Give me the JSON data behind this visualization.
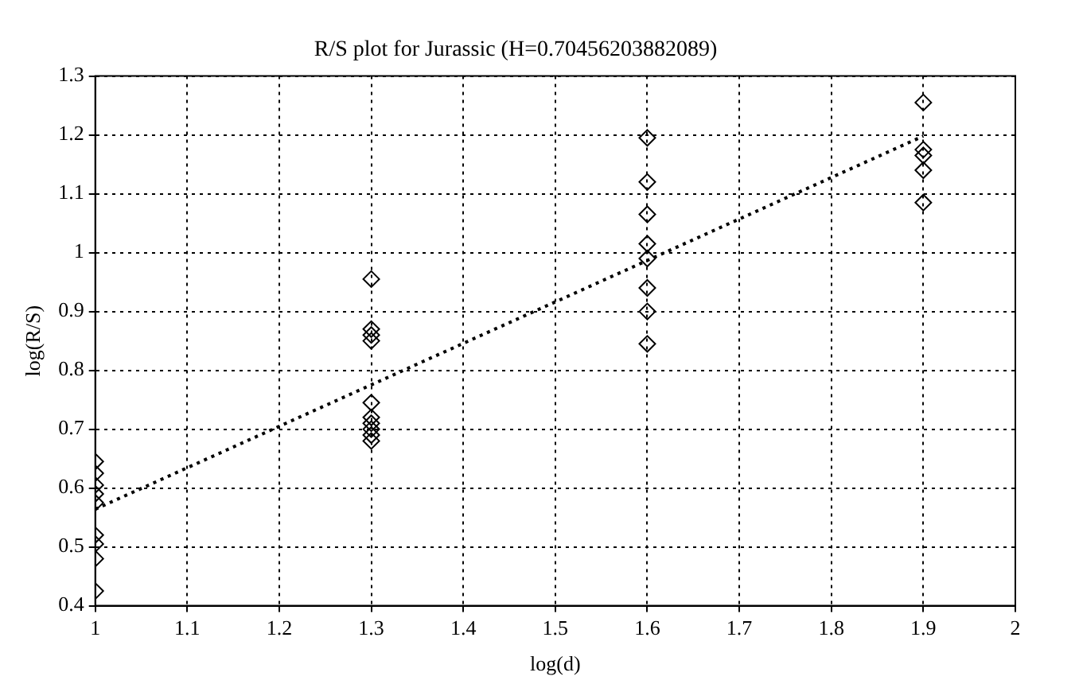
{
  "chart_data": {
    "type": "scatter",
    "title": "R/S plot for Jurassic (H=0.70456203882089)",
    "xlabel": "log(d)",
    "ylabel": "log(R/S)",
    "xlim": [
      1,
      2
    ],
    "xticks": [
      1,
      1.1,
      1.2,
      1.3,
      1.4,
      1.5,
      1.6,
      1.7,
      1.8,
      1.9,
      2
    ],
    "ylim": [
      0.4,
      1.3
    ],
    "yticks": [
      0.4,
      0.5,
      0.6,
      0.7,
      0.8,
      0.9,
      1,
      1.1,
      1.2,
      1.3
    ],
    "grid": true,
    "legend": false,
    "series": [
      {
        "type": "scatter",
        "marker": "diamond",
        "color": "#000000",
        "x": [
          1,
          1,
          1,
          1,
          1,
          1,
          1,
          1,
          1,
          1.3,
          1.3,
          1.3,
          1.3,
          1.3,
          1.3,
          1.3,
          1.3,
          1.3,
          1.3,
          1.6,
          1.6,
          1.6,
          1.6,
          1.6,
          1.6,
          1.6,
          1.6,
          1.9,
          1.9,
          1.9,
          1.9,
          1.9
        ],
        "values": [
          0.645,
          0.625,
          0.605,
          0.59,
          0.575,
          0.52,
          0.505,
          0.48,
          0.425,
          0.955,
          0.87,
          0.86,
          0.85,
          0.745,
          0.72,
          0.71,
          0.7,
          0.69,
          0.68,
          1.195,
          1.12,
          1.065,
          1.015,
          0.99,
          0.94,
          0.9,
          0.845,
          1.255,
          1.175,
          1.165,
          1.14,
          1.085
        ]
      },
      {
        "type": "line",
        "marker": "none",
        "line_style": "dotted",
        "color": "#000000",
        "x": [
          1,
          1.9
        ],
        "values": [
          0.564,
          1.198
        ]
      }
    ]
  }
}
